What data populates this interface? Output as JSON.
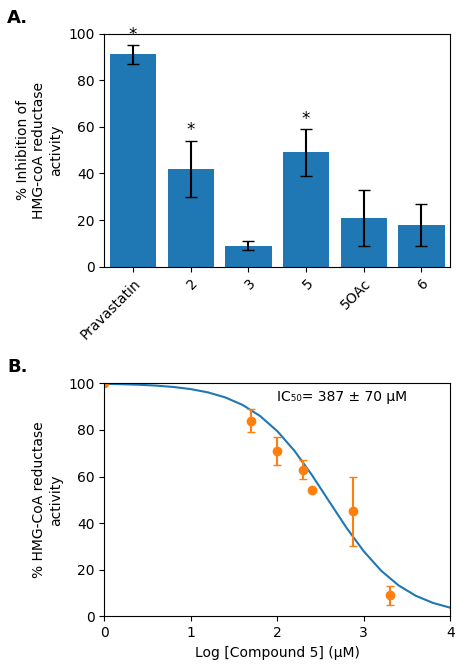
{
  "chart_data": [
    {
      "type": "bar",
      "title": "A.",
      "categories": [
        "Pravastatin",
        "2",
        "3",
        "5",
        "5OAc",
        "6"
      ],
      "values": [
        91,
        42,
        9,
        49,
        21,
        18
      ],
      "errors": [
        4,
        12,
        2,
        10,
        12,
        9
      ],
      "annotations": [
        {
          "category": "Pravastatin",
          "text": "*"
        },
        {
          "category": "2",
          "text": "*"
        },
        {
          "category": "5",
          "text": "*"
        }
      ],
      "ylabel": "% Inhibition of\nHMG-coA reductase\nactivity",
      "ylim": [
        0,
        100
      ],
      "yticks": [
        0,
        20,
        40,
        60,
        80,
        100
      ],
      "grid": false
    },
    {
      "type": "scatter",
      "title": "B.",
      "series": [
        {
          "type": "line",
          "x": [
            0,
            0.2,
            0.4,
            0.6,
            0.8,
            1.0,
            1.2,
            1.4,
            1.6,
            1.8,
            2.0,
            2.2,
            2.4,
            2.6,
            2.8,
            3.0,
            3.2,
            3.4,
            3.6,
            3.8,
            4.0
          ],
          "values": [
            99.742,
            99.592,
            99.355,
            98.982,
            98.396,
            97.481,
            96.066,
            93.905,
            90.673,
            85.982,
            79.466,
            70.946,
            60.64,
            49.293,
            38.017,
            27.902,
            19.626,
            13.35,
            8.86,
            5.779,
            3.726
          ]
        },
        {
          "type": "scatter",
          "marker": "o",
          "x": [
            0,
            1.69897,
            2,
            2.30103,
            2.39794,
            2.87506,
            3.30103
          ],
          "values": [
            100,
            84,
            71,
            63,
            54,
            45,
            9
          ],
          "errors": [
            0,
            5,
            6,
            4,
            0,
            15,
            4
          ]
        }
      ],
      "annotations": [
        {
          "text": "IC₅₀= 387 ± 70 μM"
        }
      ],
      "xlabel": "Log [Compound 5] (μM)",
      "ylabel": "% HMG-CoA reductase\nactivity",
      "xlim": [
        0,
        4
      ],
      "xticks": [
        0,
        1,
        2,
        3,
        4
      ],
      "ylim": [
        0,
        100
      ],
      "yticks": [
        0,
        20,
        40,
        60,
        80,
        100
      ],
      "grid": false
    }
  ]
}
